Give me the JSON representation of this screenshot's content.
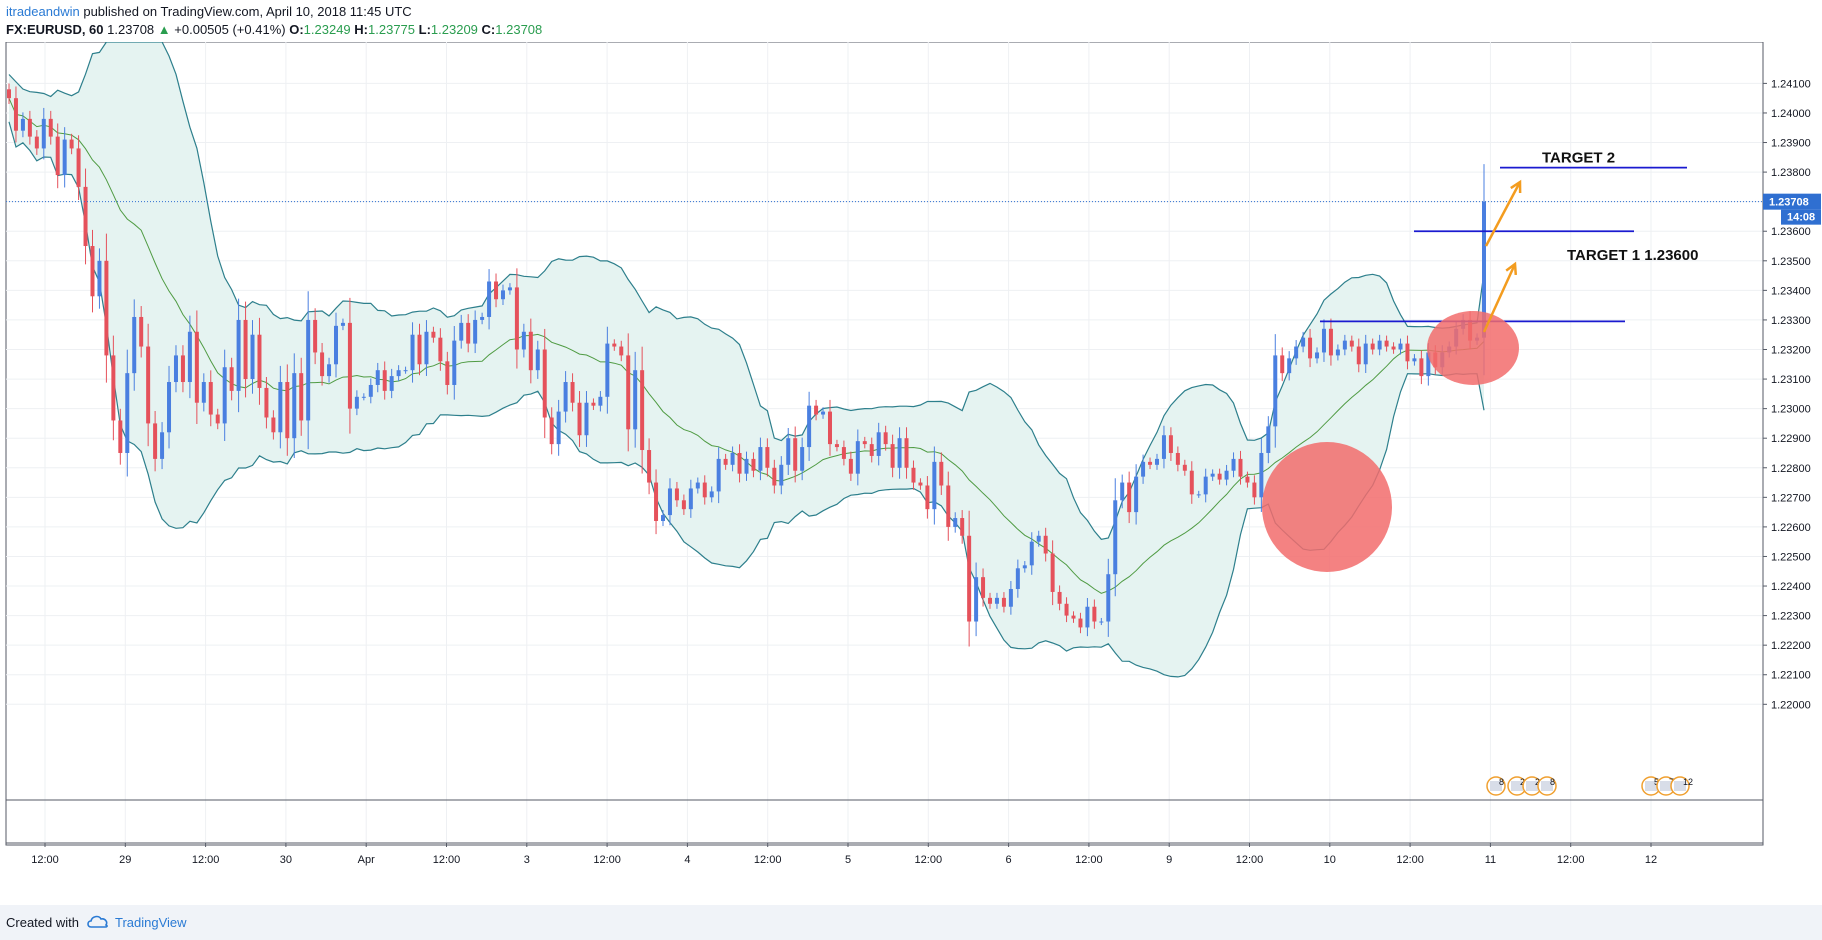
{
  "header": {
    "author": "itradeandwin",
    "publish_text": "published on TradingView.com, April 10, 2018 11:45 UTC",
    "symbol": "FX:EURUSD, 60",
    "last": "1.23708",
    "change": "+0.00505 (+0.41%)",
    "open_label": "O:",
    "open": "1.23249",
    "high_label": "H:",
    "high": "1.23775",
    "low_label": "L:",
    "low": "1.23209",
    "close_label": "C:",
    "close": "1.23708"
  },
  "footer": {
    "created_with": "Created with",
    "brand": "TradingView"
  },
  "colors": {
    "up": "#4a7fe0",
    "down": "#e5515b",
    "band_fill": "#e5f3f1",
    "band_line": "#2d7f8c",
    "basis": "#4f9b43",
    "target_line": "#1a1ad0",
    "arrow": "#f39c1f",
    "circle": "#f26c6c",
    "price_tag": "#2f6fd1"
  },
  "chart_data": {
    "type": "candlestick",
    "symbol": "FX:EURUSD",
    "timeframe": "60",
    "ylim": [
      1.2193,
      1.2424
    ],
    "y_ticks": [
      "1.24100",
      "1.24000",
      "1.23900",
      "1.23800",
      "1.23700",
      "1.23600",
      "1.23500",
      "1.23400",
      "1.23300",
      "1.23200",
      "1.23100",
      "1.23000",
      "1.22900",
      "1.22800",
      "1.22700",
      "1.22600",
      "1.22500",
      "1.22400",
      "1.22300",
      "1.22200",
      "1.22100",
      "1.22000"
    ],
    "x_ticks": [
      "12:00",
      "29",
      "12:00",
      "30",
      "Apr",
      "12:00",
      "3",
      "12:00",
      "4",
      "12:00",
      "5",
      "12:00",
      "6",
      "12:00",
      "9",
      "12:00",
      "10",
      "12:00",
      "11",
      "12:00",
      "12"
    ],
    "closes": [
      1.2405,
      1.2394,
      1.2398,
      1.2392,
      1.2388,
      1.2398,
      1.2392,
      1.2379,
      1.2391,
      1.2388,
      1.2375,
      1.2355,
      1.2338,
      1.235,
      1.2318,
      1.2296,
      1.2285,
      1.2312,
      1.2331,
      1.2321,
      1.2295,
      1.2283,
      1.2292,
      1.2309,
      1.2318,
      1.2309,
      1.2326,
      1.2302,
      1.2309,
      1.2298,
      1.2295,
      1.2314,
      1.2306,
      1.233,
      1.231,
      1.2325,
      1.2307,
      1.2297,
      1.2292,
      1.2309,
      1.229,
      1.2312,
      1.2296,
      1.233,
      1.2319,
      1.2311,
      1.2315,
      1.2328,
      1.2329,
      1.23,
      1.2304,
      1.2304,
      1.2308,
      1.2313,
      1.2306,
      1.2311,
      1.2313,
      1.2313,
      1.2325,
      1.2315,
      1.2326,
      1.2324,
      1.2316,
      1.2308,
      1.2323,
      1.2329,
      1.2322,
      1.233,
      1.2331,
      1.2343,
      1.2337,
      1.234,
      1.2341,
      1.232,
      1.2326,
      1.2313,
      1.232,
      1.2297,
      1.2288,
      1.2299,
      1.2309,
      1.2302,
      1.2291,
      1.2302,
      1.2301,
      1.2304,
      1.2322,
      1.2321,
      1.2318,
      1.2293,
      1.2313,
      1.2286,
      1.2275,
      1.2262,
      1.2264,
      1.2273,
      1.2269,
      1.2266,
      1.2273,
      1.2275,
      1.227,
      1.2272,
      1.2283,
      1.2281,
      1.2285,
      1.2278,
      1.2283,
      1.2279,
      1.2287,
      1.228,
      1.2274,
      1.2281,
      1.229,
      1.2279,
      1.2287,
      1.2301,
      1.2298,
      1.2299,
      1.2288,
      1.2287,
      1.2283,
      1.2278,
      1.2289,
      1.2288,
      1.2284,
      1.2292,
      1.2288,
      1.228,
      1.229,
      1.228,
      1.2275,
      1.2274,
      1.2266,
      1.2282,
      1.2274,
      1.226,
      1.2263,
      1.2257,
      1.2228,
      1.2243,
      1.2236,
      1.2234,
      1.2236,
      1.2233,
      1.2239,
      1.2246,
      1.2247,
      1.2255,
      1.2257,
      1.2251,
      1.2238,
      1.2234,
      1.223,
      1.2229,
      1.2226,
      1.2233,
      1.2228,
      1.2228,
      1.2244,
      1.2269,
      1.2275,
      1.2265,
      1.2277,
      1.2282,
      1.2281,
      1.2283,
      1.2291,
      1.2285,
      1.2281,
      1.2279,
      1.2271,
      1.2271,
      1.2277,
      1.2278,
      1.2276,
      1.2279,
      1.2283,
      1.2277,
      1.2275,
      1.227,
      1.2285,
      1.2294,
      1.2318,
      1.2312,
      1.2317,
      1.2321,
      1.2324,
      1.2317,
      1.2319,
      1.2327,
      1.2318,
      1.232,
      1.2323,
      1.2321,
      1.2315,
      1.2322,
      1.232,
      1.2323,
      1.2321,
      1.232,
      1.2322,
      1.2316,
      1.2317,
      1.2311,
      1.2319,
      1.2314,
      1.2319,
      1.2321,
      1.2327,
      1.233,
      1.2323,
      1.2324,
      1.237
    ],
    "bollinger": {
      "period": 20,
      "stddev": 2
    },
    "annotations": [
      {
        "type": "hline",
        "price": 1.23295,
        "label": ""
      },
      {
        "type": "hline",
        "price": 1.236,
        "label": "TARGET 1 1.23600"
      },
      {
        "type": "hline",
        "price": 1.23815,
        "label": "TARGET 2"
      },
      {
        "type": "circle",
        "label": ""
      },
      {
        "type": "circle",
        "label": ""
      },
      {
        "type": "arrow",
        "label": ""
      },
      {
        "type": "arrow",
        "label": ""
      }
    ],
    "last_price_label": "1.23708",
    "countdown_label": "14:08",
    "event_badges": [
      "8",
      "2",
      "22",
      "8",
      "5",
      "7",
      "12"
    ],
    "grid": true
  }
}
